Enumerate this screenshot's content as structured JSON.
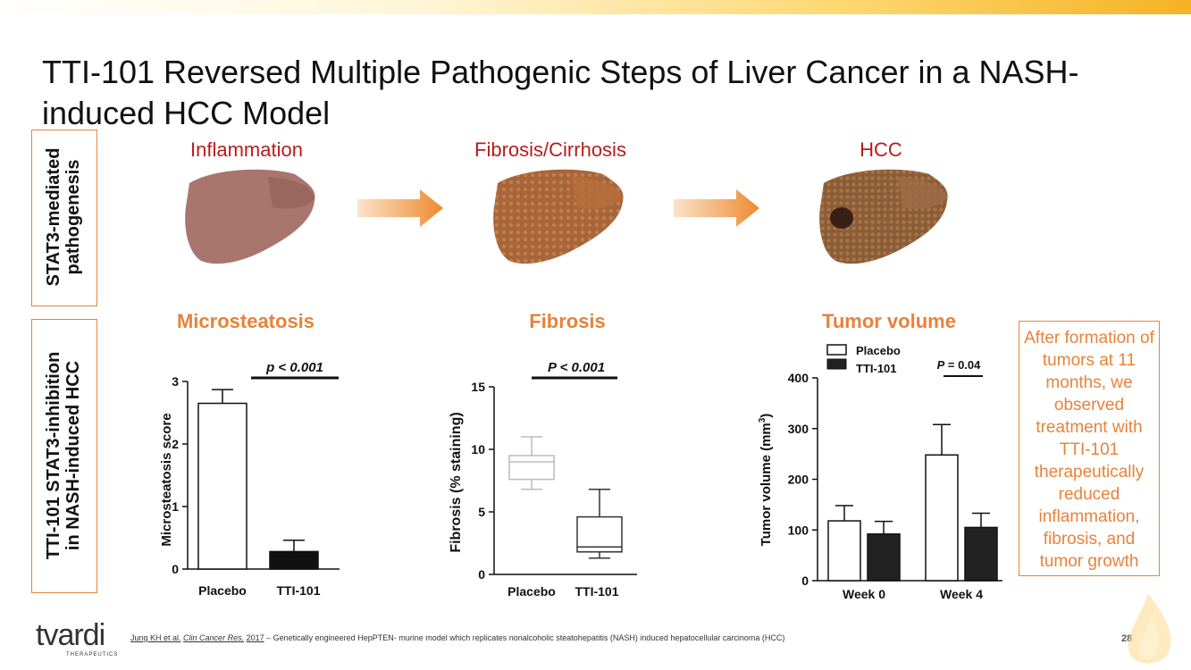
{
  "slide": {
    "title": "TTI-101 Reversed Multiple Pathogenic Steps of Liver Cancer in a NASH-induced HCC Model",
    "page_number": "28"
  },
  "side_labels": {
    "top": [
      "STAT3-mediated",
      "pathogenesis"
    ],
    "bottom": [
      "TTI-101 STAT3-inhibition",
      "in NASH-induced HCC"
    ]
  },
  "stages": [
    "Inflammation",
    "Fibrosis/Cirrhosis",
    "HCC"
  ],
  "note": "After formation of tumors at 11 months, we observed treatment with TTI-101 therapeutically reduced inflammation, fibrosis, and tumor growth",
  "footer": {
    "authors": "Jung KH et al.",
    "journal": "Clin Cancer Res.",
    "year": "2017",
    "text": " – Genetically engineered HepPTEN- murine model which replicates nonalcoholic steatohepatitis (NASH) induced hepatocellular carcinoma (HCC)"
  },
  "logo": {
    "word": "tvardi",
    "sub": "THERAPEUTICS"
  },
  "colors": {
    "accent": "#e8823a",
    "stage_red": "#b81c1c",
    "liver1": "#a9766d",
    "liver2": "#a8643a",
    "liver3": "#8a5c37"
  },
  "chart_data": [
    {
      "type": "bar",
      "title": "Microsteatosis",
      "ylabel": "Microsteatosis score",
      "ylim": [
        0,
        3
      ],
      "yticks": [
        "0",
        "1",
        "2",
        "3"
      ],
      "categories": [
        "Placebo",
        "TTI-101"
      ],
      "values": [
        2.65,
        0.28
      ],
      "errors": [
        0.22,
        0.18
      ],
      "fills": [
        "#ffffff",
        "#111111"
      ],
      "annotation": "p < 0.001"
    },
    {
      "type": "box",
      "title": "Fibrosis",
      "ylabel": "Fibrosis (% staining)",
      "ylim": [
        0,
        15
      ],
      "yticks": [
        "0",
        "5",
        "10",
        "15"
      ],
      "categories": [
        "Placebo",
        "TTI-101"
      ],
      "boxes": [
        {
          "min": 6.8,
          "q1": 7.6,
          "median": 9.0,
          "q3": 9.5,
          "max": 11.0
        },
        {
          "min": 1.3,
          "q1": 1.8,
          "median": 2.2,
          "q3": 4.6,
          "max": 6.8
        }
      ],
      "annotation": "P < 0.001"
    },
    {
      "type": "bar",
      "title": "Tumor volume",
      "ylabel": "Tumor volume (mm",
      "ylabel_sup": "3",
      "ylabel_end": ")",
      "ylim": [
        0,
        400
      ],
      "yticks": [
        "0",
        "100",
        "200",
        "300",
        "400"
      ],
      "categories": [
        "Week 0",
        "Week 4"
      ],
      "series": [
        {
          "name": "Placebo",
          "values": [
            118,
            248
          ],
          "errors": [
            30,
            60
          ],
          "fill": "#ffffff"
        },
        {
          "name": "TTI-101",
          "values": [
            92,
            105
          ],
          "errors": [
            25,
            28
          ],
          "fill": "#222222"
        }
      ],
      "annotation_prefix": "P",
      "annotation": " = 0.04"
    }
  ]
}
